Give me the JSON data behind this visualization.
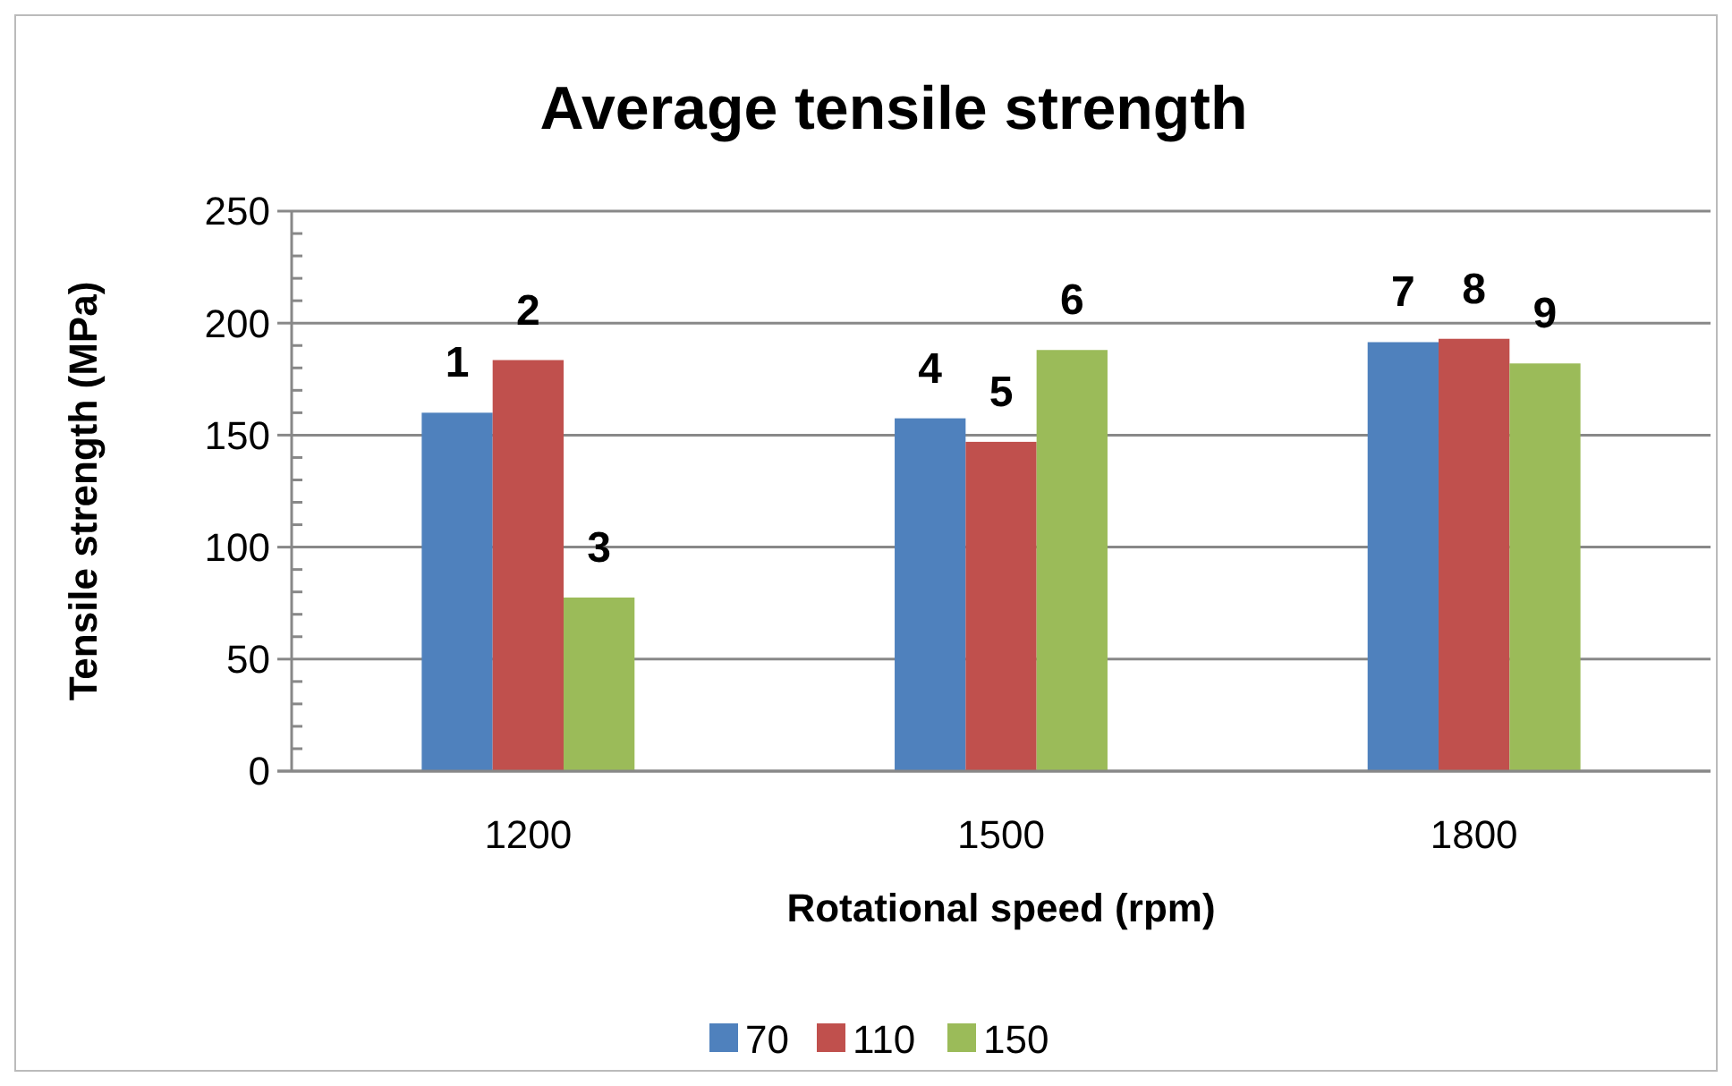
{
  "chart_data": {
    "type": "bar",
    "title": "Average tensile strength",
    "xlabel": "Rotational speed (rpm)",
    "ylabel": "Tensile strength (MPa)",
    "categories": [
      "1200",
      "1500",
      "1800"
    ],
    "series": [
      {
        "name": "70",
        "color": "#4f81bd",
        "values": [
          160,
          157.5,
          191.5
        ]
      },
      {
        "name": "110",
        "color": "#c0504d",
        "values": [
          183.5,
          147,
          193
        ]
      },
      {
        "name": "150",
        "color": "#9bbb59",
        "values": [
          77.5,
          188,
          182
        ]
      }
    ],
    "annotations": [
      "1",
      "2",
      "3",
      "4",
      "5",
      "6",
      "7",
      "8",
      "9"
    ],
    "ylim": [
      0,
      250
    ],
    "yticks": [
      0,
      {
        "value": 10,
        "label": null
      },
      {
        "value": 20,
        "label": null
      },
      {
        "value": 30,
        "label": null
      },
      {
        "value": 40,
        "label": null
      },
      50,
      {
        "value": 60,
        "label": null
      },
      {
        "value": 70,
        "label": null
      },
      {
        "value": 80,
        "label": null
      },
      {
        "value": 90,
        "label": null
      },
      100,
      {
        "value": 110,
        "label": null
      },
      {
        "value": 120,
        "label": null
      },
      {
        "value": 130,
        "label": null
      },
      {
        "value": 140,
        "label": null
      },
      150,
      {
        "value": 160,
        "label": null
      },
      {
        "value": 170,
        "label": null
      },
      {
        "value": 180,
        "label": null
      },
      {
        "value": 190,
        "label": null
      },
      200,
      {
        "value": 210,
        "label": null
      },
      {
        "value": 220,
        "label": null
      },
      {
        "value": 230,
        "label": null
      },
      {
        "value": 240,
        "label": null
      },
      250
    ],
    "grid": "y",
    "legend": "bottom"
  }
}
